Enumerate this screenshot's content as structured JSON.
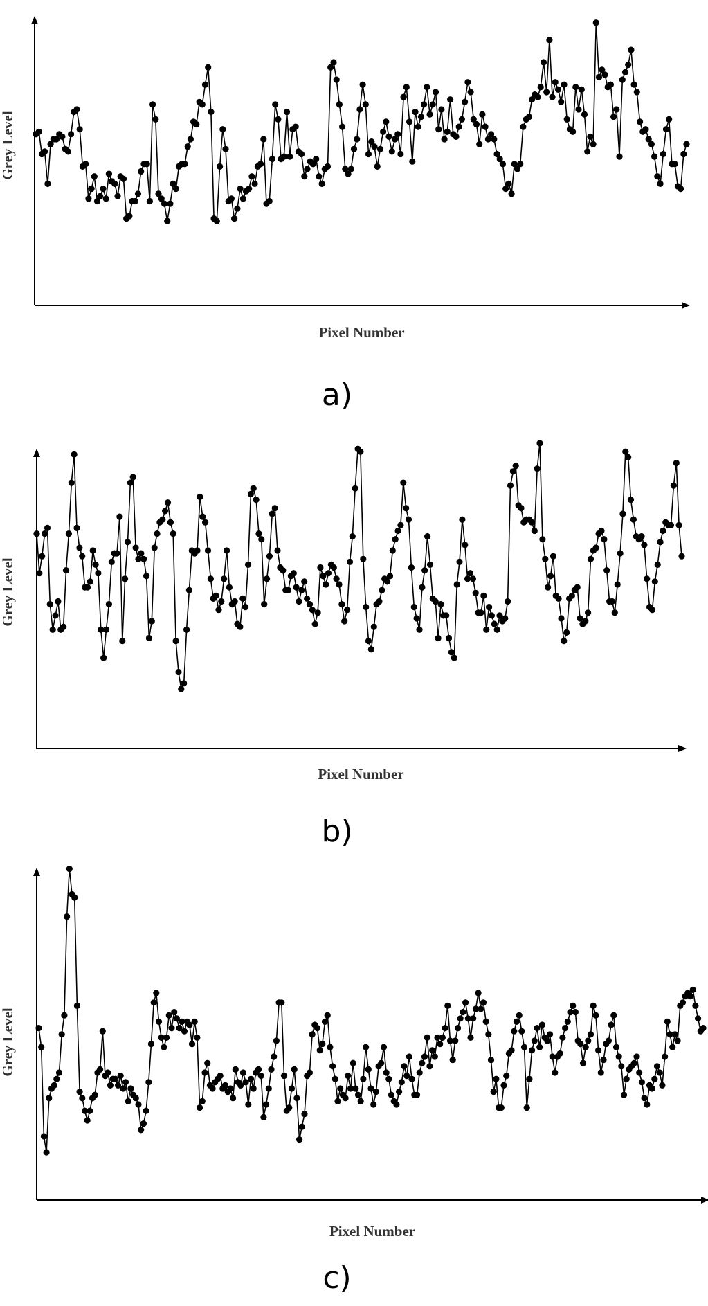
{
  "chart_data": [
    {
      "type": "line",
      "panel": "a",
      "caption": "a)",
      "xlabel": "Pixel Number",
      "ylabel": "Grey Level",
      "grid": false,
      "marker": "filled-circle",
      "color": "#000000",
      "ylim": [
        0,
        100
      ],
      "values": [
        52,
        53,
        44,
        45,
        32,
        48,
        50,
        50,
        52,
        51,
        46,
        45,
        52,
        61,
        62,
        54,
        39,
        40,
        26,
        30,
        35,
        25,
        27,
        30,
        26,
        36,
        33,
        32,
        27,
        35,
        34,
        18,
        19,
        25,
        25,
        28,
        37,
        40,
        40,
        25,
        64,
        58,
        28,
        26,
        24,
        17,
        24,
        32,
        30,
        39,
        40,
        40,
        47,
        50,
        57,
        56,
        65,
        64,
        72,
        79,
        61,
        18,
        17,
        39,
        54,
        46,
        25,
        26,
        18,
        22,
        30,
        26,
        29,
        30,
        35,
        32,
        39,
        40,
        50,
        24,
        25,
        42,
        64,
        58,
        42,
        43,
        61,
        43,
        54,
        55,
        45,
        44,
        35,
        38,
        41,
        40,
        42,
        35,
        32,
        38,
        39,
        79,
        81,
        74,
        64,
        55,
        38,
        36,
        38,
        46,
        50,
        62,
        72,
        64,
        44,
        49,
        47,
        39,
        46,
        53,
        57,
        51,
        45,
        50,
        52,
        44,
        67,
        71,
        57,
        41,
        61,
        55,
        59,
        64,
        71,
        60,
        64,
        69,
        54,
        62,
        50,
        53,
        66,
        52,
        51,
        55,
        58,
        65,
        73,
        69,
        58,
        56,
        48,
        60,
        55,
        50,
        52,
        50,
        44,
        42,
        40,
        30,
        32,
        28,
        40,
        38,
        40,
        55,
        58,
        59,
        66,
        68,
        67,
        71,
        81,
        69,
        90,
        67,
        73,
        70,
        65,
        72,
        58,
        54,
        53,
        71,
        62,
        70,
        60,
        45,
        51,
        48,
        97,
        75,
        78,
        76,
        71,
        72,
        59,
        62,
        43,
        74,
        77,
        80,
        86,
        72,
        69,
        57,
        53,
        54,
        50,
        48,
        43,
        35,
        32,
        44,
        54,
        58,
        40,
        40,
        31,
        30,
        44,
        48
      ]
    },
    {
      "type": "line",
      "panel": "b",
      "caption": "b)",
      "xlabel": "Pixel Number",
      "ylabel": "Grey Level",
      "grid": false,
      "marker": "filled-circle",
      "color": "#000000",
      "ylim": [
        0,
        100
      ],
      "values": [
        68,
        54,
        60,
        68,
        70,
        43,
        34,
        39,
        44,
        34,
        35,
        55,
        68,
        86,
        96,
        70,
        63,
        60,
        49,
        49,
        51,
        62,
        57,
        54,
        34,
        24,
        34,
        43,
        58,
        61,
        61,
        74,
        30,
        52,
        65,
        86,
        88,
        63,
        59,
        61,
        59,
        53,
        31,
        37,
        63,
        68,
        72,
        73,
        76,
        79,
        72,
        68,
        30,
        19,
        13,
        15,
        34,
        48,
        62,
        61,
        62,
        81,
        74,
        72,
        62,
        52,
        45,
        46,
        41,
        44,
        52,
        62,
        49,
        43,
        44,
        36,
        35,
        45,
        42,
        57,
        82,
        84,
        80,
        68,
        66,
        43,
        52,
        60,
        75,
        77,
        62,
        56,
        55,
        48,
        48,
        53,
        54,
        49,
        44,
        48,
        51,
        45,
        43,
        41,
        36,
        40,
        56,
        53,
        50,
        54,
        57,
        56,
        52,
        50,
        43,
        37,
        41,
        58,
        67,
        84,
        98,
        97,
        59,
        42,
        30,
        27,
        35,
        43,
        44,
        48,
        52,
        51,
        53,
        62,
        66,
        69,
        71,
        86,
        77,
        73,
        56,
        42,
        38,
        34,
        49,
        55,
        67,
        57,
        45,
        44,
        31,
        43,
        39,
        39,
        31,
        26,
        24,
        50,
        58,
        73,
        64,
        52,
        54,
        52,
        47,
        40,
        40,
        46,
        34,
        42,
        39,
        36,
        34,
        39,
        37,
        38,
        44,
        85,
        90,
        92,
        78,
        77,
        72,
        73,
        73,
        72,
        69,
        91,
        100,
        66,
        59,
        49,
        53,
        60,
        46,
        45,
        38,
        30,
        33,
        45,
        46,
        48,
        49,
        38,
        36,
        37,
        40,
        59,
        62,
        63,
        68,
        69,
        66,
        55,
        44,
        44,
        40,
        50,
        61,
        75,
        97,
        95,
        80,
        73,
        67,
        66,
        67,
        64,
        52,
        42,
        41,
        51,
        57,
        65,
        69,
        72,
        71,
        71,
        85,
        93,
        71,
        60
      ]
    },
    {
      "type": "line",
      "panel": "c",
      "caption": "c)",
      "xlabel": "Pixel Number",
      "ylabel": "Grey Level",
      "grid": false,
      "marker": "filled-circle",
      "color": "#000000",
      "ylim": [
        0,
        100
      ],
      "values": [
        49,
        43,
        15,
        10,
        27,
        30,
        31,
        33,
        35,
        47,
        53,
        84,
        99,
        91,
        90,
        56,
        29,
        27,
        23,
        20,
        23,
        27,
        28,
        35,
        36,
        48,
        34,
        35,
        31,
        33,
        33,
        31,
        34,
        30,
        32,
        26,
        30,
        28,
        27,
        25,
        17,
        19,
        23,
        32,
        44,
        57,
        60,
        51,
        46,
        43,
        46,
        53,
        49,
        54,
        52,
        49,
        51,
        48,
        51,
        50,
        44,
        51,
        46,
        24,
        26,
        35,
        38,
        31,
        30,
        32,
        33,
        34,
        30,
        31,
        29,
        30,
        27,
        36,
        32,
        31,
        35,
        32,
        25,
        33,
        30,
        35,
        36,
        34,
        21,
        25,
        30,
        36,
        40,
        45,
        57,
        57,
        34,
        23,
        24,
        30,
        36,
        27,
        14,
        18,
        22,
        34,
        35,
        47,
        50,
        49,
        42,
        44,
        51,
        53,
        43,
        37,
        33,
        26,
        30,
        28,
        27,
        34,
        30,
        38,
        30,
        28,
        26,
        33,
        43,
        36,
        30,
        25,
        29,
        37,
        38,
        43,
        35,
        33,
        28,
        26,
        25,
        29,
        32,
        37,
        34,
        40,
        33,
        28,
        28,
        35,
        38,
        40,
        46,
        37,
        42,
        40,
        46,
        44,
        46,
        49,
        56,
        45,
        39,
        45,
        49,
        52,
        54,
        57,
        52,
        46,
        52,
        55,
        60,
        55,
        57,
        51,
        47,
        39,
        29,
        33,
        24,
        24,
        31,
        34,
        41,
        42,
        48,
        51,
        53,
        48,
        43,
        24,
        33,
        42,
        45,
        49,
        43,
        50,
        46,
        45,
        47,
        40,
        35,
        40,
        41,
        46,
        49,
        51,
        54,
        56,
        54,
        45,
        44,
        38,
        43,
        45,
        47,
        56,
        53,
        42,
        35,
        39,
        44,
        45,
        50,
        53,
        43,
        40,
        37,
        28,
        33,
        36,
        37,
        38,
        40,
        35,
        32,
        27,
        25,
        31,
        30,
        33,
        37,
        35,
        31,
        40,
        51,
        47,
        43,
        47,
        45,
        56,
        57,
        59,
        60,
        59,
        61,
        56,
        52,
        48,
        49
      ]
    }
  ]
}
